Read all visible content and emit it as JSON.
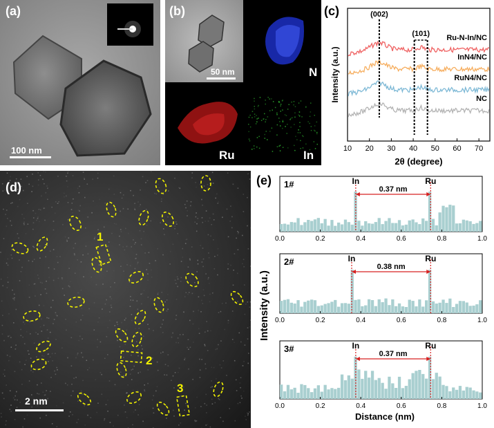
{
  "panels": {
    "a": {
      "label": "(a)",
      "scale_bar": "100 nm"
    },
    "b": {
      "label": "(b)",
      "scale_bar": "50 nm",
      "maps": [
        "N",
        "Ru",
        "In"
      ]
    },
    "c": {
      "label": "(c)"
    },
    "d": {
      "label": "(d)",
      "scale_bar": "2 nm",
      "markers": [
        "1",
        "2",
        "3"
      ]
    },
    "e": {
      "label": "(e)"
    }
  },
  "colors": {
    "red": "#ef6262",
    "orange": "#f6ae5f",
    "blue": "#7eb9d6",
    "gray": "#b3b3b3",
    "teal": "#a9cfd0",
    "yellow": "#f2f200"
  },
  "chart_data": [
    {
      "type": "line",
      "panel": "c",
      "title": "",
      "xlabel": "2θ (degree)",
      "ylabel": "Intensity (a.u.)",
      "xlim": [
        10,
        75
      ],
      "xticks": [
        10,
        20,
        30,
        40,
        50,
        60,
        70
      ],
      "series": [
        {
          "name": "Ru-N-In/NC",
          "color": "#ef6262",
          "offset": 3
        },
        {
          "name": "InN4/NC",
          "color": "#f6ae5f",
          "offset": 2
        },
        {
          "name": "RuN4/NC",
          "color": "#7eb9d6",
          "offset": 1
        },
        {
          "name": "NC",
          "color": "#b3b3b3",
          "offset": 0
        }
      ],
      "annotations": [
        {
          "text": "(002)",
          "x": 24.5
        },
        {
          "text": "(101)",
          "x": 43.5,
          "range": [
            40.5,
            46.5
          ]
        }
      ]
    },
    {
      "type": "bar",
      "panel": "e",
      "xlabel": "Distance (nm)",
      "ylabel": "Intensity (a.u.)",
      "xlim": [
        0.0,
        1.0
      ],
      "xticks": [
        "0.0",
        "0.2",
        "0.4",
        "0.6",
        "0.8",
        "1.0"
      ],
      "profiles": [
        {
          "name": "1#",
          "in_label": "In",
          "ru_label": "Ru",
          "distance_label": "0.37 nm",
          "in_pos": 0.375,
          "ru_pos": 0.745
        },
        {
          "name": "2#",
          "in_label": "In",
          "ru_label": "Ru",
          "distance_label": "0.38 nm",
          "in_pos": 0.355,
          "ru_pos": 0.745
        },
        {
          "name": "3#",
          "in_label": "In",
          "ru_label": "Ru",
          "distance_label": "0.37 nm",
          "in_pos": 0.375,
          "ru_pos": 0.745
        }
      ]
    }
  ]
}
